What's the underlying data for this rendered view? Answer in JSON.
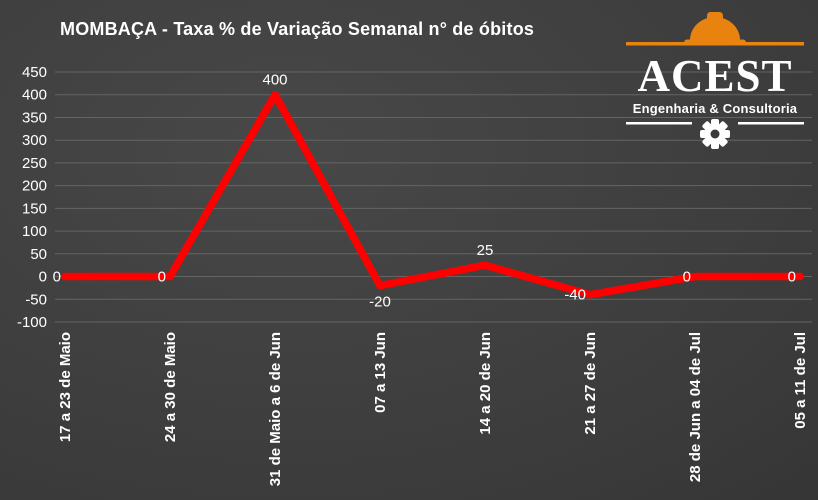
{
  "title": "MOMBAÇA - Taxa % de Variação Semanal n° de óbitos",
  "logo": {
    "name": "ACEST",
    "subtitle": "Engenharia & Consultoria",
    "hat_color": "#e8830f",
    "text_color": "#ffffff"
  },
  "chart_data": {
    "type": "line",
    "categories": [
      "17 a 23 de Maio",
      "24 a 30 de Maio",
      "31 de Maio a 6 de Jun",
      "07 a 13 Jun",
      "14 a 20 de Jun",
      "21 a 27 de Jun",
      "28 de Jun a 04 de Jul",
      "05 a 11 de Jul"
    ],
    "values": [
      0,
      0,
      400,
      -20,
      25,
      -40,
      0,
      0
    ],
    "data_labels": [
      "0",
      "0",
      "400",
      "-20",
      "25",
      "-40",
      "0",
      "0"
    ],
    "label_placement": [
      "left",
      "left",
      "above",
      "below",
      "above",
      "left",
      "left",
      "left"
    ],
    "yticks": [
      450,
      400,
      350,
      300,
      250,
      200,
      150,
      100,
      50,
      0,
      -50,
      -100
    ],
    "ylim": [
      -100,
      450
    ],
    "grid": true,
    "legend": false,
    "line_color": "#ff0000",
    "grid_color": "#646464",
    "text_color": "#ffffff",
    "background_color": "#3b3b3b"
  }
}
